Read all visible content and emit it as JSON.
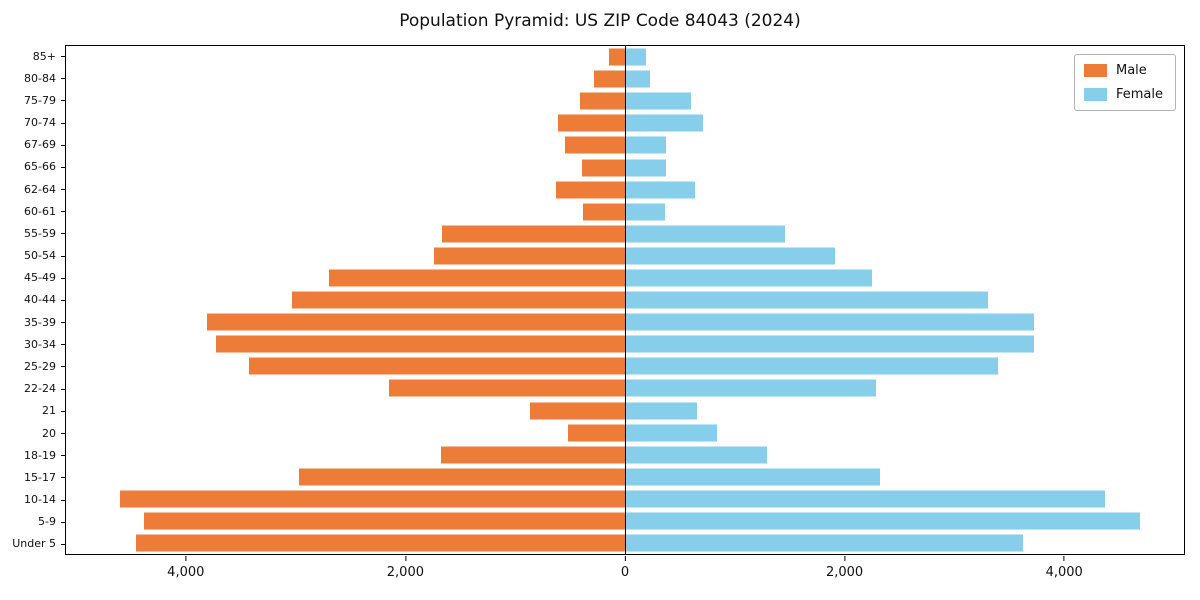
{
  "title": "Population Pyramid: US ZIP Code 84043 (2024)",
  "chart_data": {
    "type": "bar",
    "subtype": "population-pyramid",
    "orientation": "horizontal",
    "title": "Population Pyramid: US ZIP Code 84043 (2024)",
    "xlabel": "",
    "ylabel": "",
    "grid": false,
    "legend_position": "upper right",
    "xlim": [
      -5100,
      5100
    ],
    "x_ticks": [
      {
        "value": -4000,
        "label": "4,000"
      },
      {
        "value": -2000,
        "label": "2,000"
      },
      {
        "value": 0,
        "label": "0"
      },
      {
        "value": 2000,
        "label": "2,000"
      },
      {
        "value": 4000,
        "label": "4,000"
      }
    ],
    "categories": [
      "85+",
      "80-84",
      "75-79",
      "70-74",
      "67-69",
      "65-66",
      "62-64",
      "60-61",
      "55-59",
      "50-54",
      "45-49",
      "40-44",
      "35-39",
      "30-34",
      "25-29",
      "22-24",
      "21",
      "20",
      "18-19",
      "15-17",
      "10-14",
      "5-9",
      "Under 5"
    ],
    "series": [
      {
        "name": "Male",
        "side": "left",
        "color": "#ED7C39",
        "values": [
          150,
          280,
          410,
          610,
          550,
          390,
          630,
          385,
          1670,
          1740,
          2700,
          3040,
          3810,
          3730,
          3430,
          2150,
          870,
          520,
          1680,
          2970,
          4610,
          4390,
          4460
        ]
      },
      {
        "name": "Female",
        "side": "right",
        "color": "#87CEEB",
        "values": [
          190,
          230,
          600,
          710,
          370,
          375,
          640,
          365,
          1460,
          1920,
          2250,
          3310,
          3730,
          3730,
          3400,
          2290,
          660,
          840,
          1300,
          2330,
          4380,
          4700,
          3630
        ]
      }
    ]
  }
}
